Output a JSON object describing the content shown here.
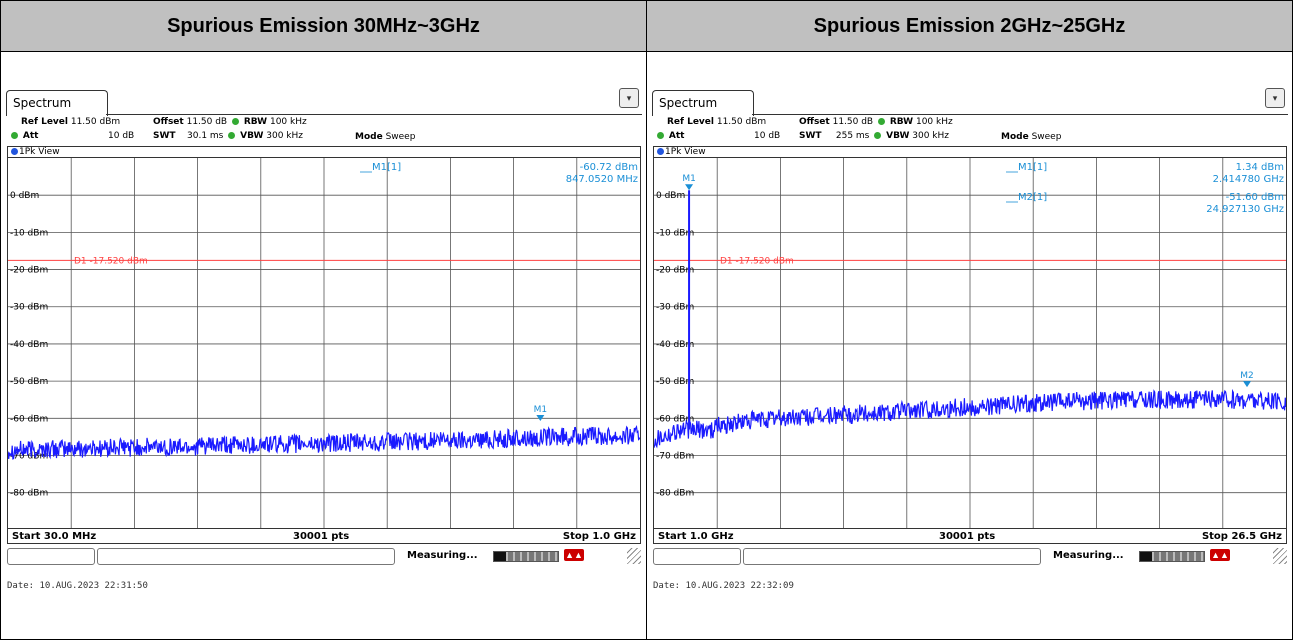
{
  "panels": [
    {
      "title": "Spurious Emission 30MHz~3GHz",
      "tab": "Spectrum",
      "ref_level_label": "Ref Level",
      "ref_level_value": "11.50 dBm",
      "offset_label": "Offset",
      "offset_value": "11.50 dB",
      "rbw_label": "RBW",
      "rbw_value": "100 kHz",
      "att_label": "Att",
      "att_value": "10 dB",
      "swt_label": "SWT",
      "swt_value": "30.1 ms",
      "vbw_label": "VBW",
      "vbw_value": "300 kHz",
      "mode_label": "Mode",
      "mode_value": "Sweep",
      "view_label": "1Pk View",
      "start_label": "Start 30.0 MHz",
      "points_label": "30001 pts",
      "stop_label": "Stop 1.0 GHz",
      "status_text": "Measuring...",
      "date_text": "Date: 10.AUG.2023  22:31:50",
      "marker_readouts": [
        {
          "name": "M1[1]",
          "value": "-60.72 dBm",
          "freq": "847.0520 MHz"
        }
      ]
    },
    {
      "title": "Spurious Emission 2GHz~25GHz",
      "tab": "Spectrum",
      "ref_level_label": "Ref Level",
      "ref_level_value": "11.50 dBm",
      "offset_label": "Offset",
      "offset_value": "11.50 dB",
      "rbw_label": "RBW",
      "rbw_value": "100 kHz",
      "att_label": "Att",
      "att_value": "10 dB",
      "swt_label": "SWT",
      "swt_value": "255 ms",
      "vbw_label": "VBW",
      "vbw_value": "300 kHz",
      "mode_label": "Mode",
      "mode_value": "Sweep",
      "view_label": "1Pk View",
      "start_label": "Start 1.0 GHz",
      "points_label": "30001 pts",
      "stop_label": "Stop 26.5 GHz",
      "status_text": "Measuring...",
      "date_text": "Date: 10.AUG.2023  22:32:09",
      "marker_readouts": [
        {
          "name": "M1[1]",
          "value": "1.34 dBm",
          "freq": "2.414780 GHz"
        },
        {
          "name": "M2[1]",
          "value": "-51.60 dBm",
          "freq": "24.927130 GHz"
        }
      ]
    }
  ],
  "chart_data": [
    {
      "type": "line",
      "x_unit": "MHz",
      "y_unit": "dBm",
      "xlim": [
        30,
        1000
      ],
      "ylim": [
        -89.5,
        10
      ],
      "y_ticks": [
        0,
        -10,
        -20,
        -30,
        -40,
        -50,
        -60,
        -70,
        -80
      ],
      "y_tick_labels": [
        "0 dBm",
        "-10 dBm",
        "-20 dBm",
        "-30 dBm",
        "-40 dBm",
        "-50 dBm",
        "-60 dBm",
        "-70 dBm",
        "-80 dBm"
      ],
      "grid": true,
      "limit_line": {
        "label": "D1  -17.520 dBm",
        "value": -17.52,
        "color": "#ff4040"
      },
      "trace_color": "#1a1aff",
      "series": [
        {
          "x": [
            30,
            130,
            230,
            330,
            430,
            530,
            630,
            730,
            830,
            930,
            1000
          ],
          "y": [
            -68.5,
            -68.2,
            -67.8,
            -67.5,
            -67.0,
            -66.8,
            -66.3,
            -65.8,
            -65.3,
            -64.8,
            -64.5
          ]
        }
      ],
      "markers": [
        {
          "label": "M1",
          "x": 847.052,
          "y": -60.72
        }
      ]
    },
    {
      "type": "line",
      "x_unit": "GHz",
      "y_unit": "dBm",
      "xlim": [
        1.0,
        26.5
      ],
      "ylim": [
        -89.5,
        10
      ],
      "y_ticks": [
        0,
        -10,
        -20,
        -30,
        -40,
        -50,
        -60,
        -70,
        -80
      ],
      "y_tick_labels": [
        "0 dBm",
        "-10 dBm",
        "-20 dBm",
        "-30 dBm",
        "-40 dBm",
        "-50 dBm",
        "-60 dBm",
        "-70 dBm",
        "-80 dBm"
      ],
      "grid": true,
      "limit_line": {
        "label": "D1  -17.520 dBm",
        "value": -17.52,
        "color": "#ff4040"
      },
      "trace_color": "#1a1aff",
      "series": [
        {
          "x": [
            1.0,
            2.0,
            2.4,
            3.5,
            5.0,
            7.5,
            10.0,
            12.5,
            15.0,
            17.5,
            20.0,
            22.5,
            25.0,
            26.5
          ],
          "y": [
            -65.5,
            -63.0,
            1.34,
            -62.0,
            -60.5,
            -59.5,
            -58.5,
            -57.5,
            -56.5,
            -55.5,
            -55.0,
            -55.0,
            -55.0,
            -56.0
          ]
        }
      ],
      "markers": [
        {
          "label": "M1",
          "x": 2.41478,
          "y": 1.34
        },
        {
          "label": "M2",
          "x": 24.92713,
          "y": -51.6
        }
      ]
    }
  ]
}
